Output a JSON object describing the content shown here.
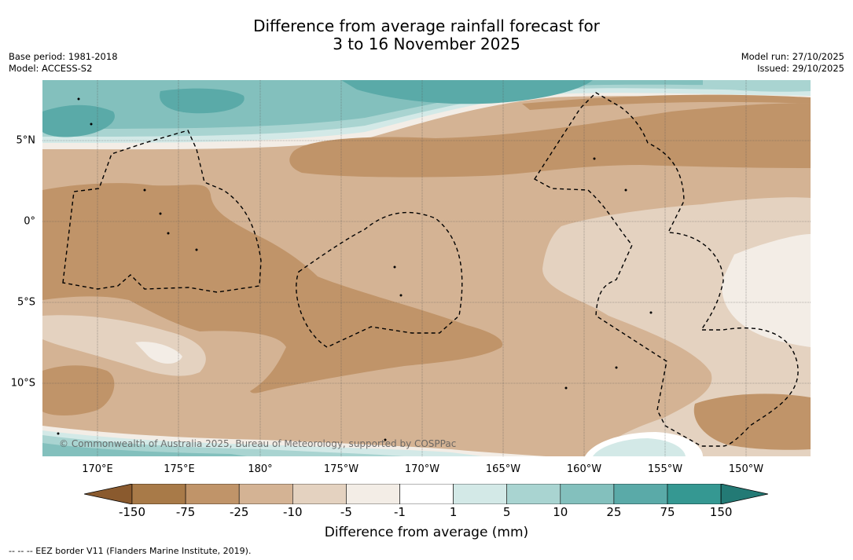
{
  "header": {
    "title_line1": "Difference from average rainfall forecast for",
    "title_line2": "3 to 16 November 2025",
    "base_period": "Base period: 1981-2018",
    "model": "Model: ACCESS-S2",
    "model_run": "Model run: 27/10/2025",
    "issued": "Issued: 29/10/2025"
  },
  "map": {
    "copyright": "© Commonwealth of Australia 2025, Bureau of Meteorology, supported by COSPPac",
    "lon_labels": [
      "170°E",
      "175°E",
      "180°",
      "175°W",
      "170°W",
      "165°W",
      "160°W",
      "155°W",
      "150°W"
    ],
    "lat_labels": [
      "5°N",
      "0°",
      "5°S",
      "10°S"
    ]
  },
  "legend": {
    "ticks": [
      "-150",
      "-75",
      "-25",
      "-10",
      "-5",
      "-1",
      "1",
      "5",
      "10",
      "25",
      "75",
      "150"
    ],
    "title": "Difference from average (mm)",
    "colors": {
      "lt150": "#8a5a2e",
      "b150_75": "#a87a48",
      "b75_25": "#c09469",
      "b25_10": "#d4b394",
      "b10_5": "#e4d2c0",
      "b5_1": "#f3ede6",
      "b1_1": "#ffffff",
      "b1_5": "#d3e9e7",
      "b5_10": "#a9d4d1",
      "b10_25": "#83c0bd",
      "b25_75": "#5aaaa8",
      "b75_150": "#359892",
      "gt150": "#237a75"
    }
  },
  "footnote": "--  --  -- EEZ border V11 (Flanders Marine Institute, 2019)."
}
